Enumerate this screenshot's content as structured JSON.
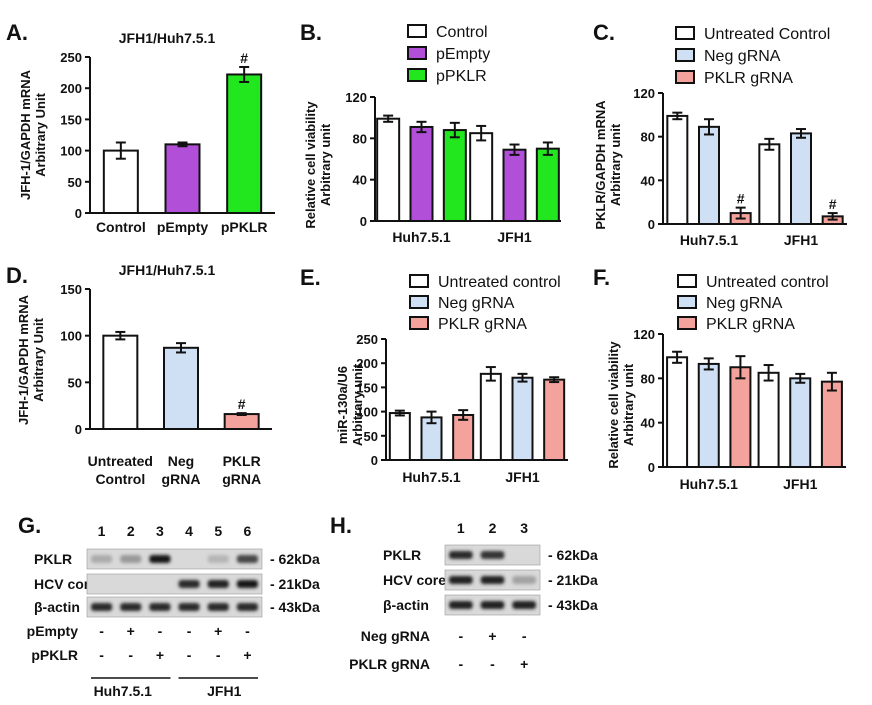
{
  "colors": {
    "white": "#ffffff",
    "purple": "#b14fd8",
    "green": "#22e61e",
    "lightblue": "#cfe0f5",
    "salmon": "#f4a29c",
    "outline": "#111111"
  },
  "chart_data": [
    {
      "panel": "A.",
      "type": "bar",
      "title": "JFH1/Huh7.5.1",
      "ylabel": [
        "JFH-1/GAPDH mRNA",
        "Arbitrary Unit"
      ],
      "ylim": [
        0,
        250
      ],
      "yticks": [
        "0",
        "50",
        "100",
        "150",
        "200",
        "250"
      ],
      "categories": [
        "Control",
        "pEmpty",
        "pPKLR"
      ],
      "values": [
        100,
        110,
        222
      ],
      "errors": [
        13,
        3,
        12
      ],
      "bar_colors": [
        "white",
        "purple",
        "green"
      ],
      "marks": [
        "",
        "",
        "#"
      ]
    },
    {
      "panel": "B.",
      "type": "bar",
      "ylabel": [
        "Relative cell viability",
        "Arbitrary unit"
      ],
      "ylim": [
        0,
        120
      ],
      "yticks": [
        "0",
        "40",
        "80",
        "120"
      ],
      "categories": [
        "Huh7.5.1",
        "JFH1"
      ],
      "series": [
        {
          "name": "Control",
          "color": "white",
          "values": [
            99,
            85
          ],
          "errors": [
            3,
            7
          ],
          "marks": [
            "",
            ""
          ]
        },
        {
          "name": "pEmpty",
          "color": "purple",
          "values": [
            91,
            69
          ],
          "errors": [
            5,
            5
          ],
          "marks": [
            "",
            ""
          ]
        },
        {
          "name": "pPKLR",
          "color": "green",
          "values": [
            88,
            70
          ],
          "errors": [
            7,
            6
          ],
          "marks": [
            "",
            ""
          ]
        }
      ]
    },
    {
      "panel": "C.",
      "type": "bar",
      "ylabel": [
        "PKLR/GAPDH mRNA",
        "Arbitrary unit"
      ],
      "ylim": [
        0,
        120
      ],
      "yticks": [
        "0",
        "40",
        "80",
        "120"
      ],
      "categories": [
        "Huh7.5.1",
        "JFH1"
      ],
      "series": [
        {
          "name": "Untreated Control",
          "color": "white",
          "values": [
            99,
            73
          ],
          "errors": [
            3,
            5
          ],
          "marks": [
            "",
            ""
          ]
        },
        {
          "name": "Neg gRNA",
          "color": "lightblue",
          "values": [
            89,
            83
          ],
          "errors": [
            7,
            4
          ],
          "marks": [
            "",
            ""
          ]
        },
        {
          "name": "PKLR gRNA",
          "color": "salmon",
          "values": [
            10,
            7
          ],
          "errors": [
            5,
            3
          ],
          "marks": [
            "#",
            "#"
          ]
        }
      ]
    },
    {
      "panel": "D.",
      "type": "bar",
      "title": "JFH1/Huh7.5.1",
      "ylabel": [
        "JFH-1/GAPDH mRNA",
        "Arbitrary Unit"
      ],
      "ylim": [
        0,
        150
      ],
      "yticks": [
        "0",
        "50",
        "100",
        "150"
      ],
      "categories": [
        [
          "Untreated",
          "Control"
        ],
        [
          "Neg",
          "gRNA"
        ],
        [
          "PKLR",
          "gRNA"
        ]
      ],
      "values": [
        100,
        87,
        16
      ],
      "errors": [
        4,
        5,
        1
      ],
      "bar_colors": [
        "white",
        "lightblue",
        "salmon"
      ],
      "marks": [
        "",
        "",
        "#"
      ]
    },
    {
      "panel": "E.",
      "type": "bar",
      "ylabel": [
        "miR-130a/U6",
        "Arbitrary unit"
      ],
      "ylim": [
        0,
        250
      ],
      "yticks": [
        "0",
        "50",
        "100",
        "150",
        "200",
        "250"
      ],
      "categories": [
        "Huh7.5.1",
        "JFH1"
      ],
      "series": [
        {
          "name": "Untreated control",
          "color": "white",
          "values": [
            97,
            178
          ],
          "errors": [
            5,
            14
          ],
          "marks": [
            "",
            ""
          ]
        },
        {
          "name": "Neg gRNA",
          "color": "lightblue",
          "values": [
            88,
            170
          ],
          "errors": [
            12,
            8
          ],
          "marks": [
            "",
            ""
          ]
        },
        {
          "name": "PKLR gRNA",
          "color": "salmon",
          "values": [
            93,
            166
          ],
          "errors": [
            10,
            5
          ],
          "marks": [
            "",
            ""
          ]
        }
      ]
    },
    {
      "panel": "F.",
      "type": "bar",
      "ylabel": [
        "Relative cell viability",
        "Arbitrary unit"
      ],
      "ylim": [
        0,
        120
      ],
      "yticks": [
        "0",
        "40",
        "80",
        "120"
      ],
      "categories": [
        "Huh7.5.1",
        "JFH1"
      ],
      "series": [
        {
          "name": "Untreated control",
          "color": "white",
          "values": [
            99,
            85
          ],
          "errors": [
            5,
            7
          ],
          "marks": [
            "",
            ""
          ]
        },
        {
          "name": "Neg gRNA",
          "color": "lightblue",
          "values": [
            93,
            80
          ],
          "errors": [
            5,
            4
          ],
          "marks": [
            "",
            ""
          ]
        },
        {
          "name": "PKLR gRNA",
          "color": "salmon",
          "values": [
            90,
            77
          ],
          "errors": [
            10,
            8
          ],
          "marks": [
            "",
            ""
          ]
        }
      ]
    }
  ],
  "blots": {
    "G": {
      "panel": "G.",
      "lanes": [
        "1",
        "2",
        "3",
        "4",
        "5",
        "6"
      ],
      "rows": [
        {
          "label": "PKLR",
          "size": "- 62kDa",
          "intensity": [
            0.15,
            0.25,
            0.95,
            0.0,
            0.1,
            0.7
          ]
        },
        {
          "label": "HCV core",
          "size": "- 21kDa",
          "intensity": [
            0.0,
            0.0,
            0.0,
            0.85,
            0.9,
            0.95
          ]
        },
        {
          "label": "β-actin",
          "size": "- 43kDa",
          "intensity": [
            0.85,
            0.85,
            0.85,
            0.85,
            0.85,
            0.85
          ]
        }
      ],
      "treatments": [
        {
          "label": "pEmpty",
          "signs": [
            "-",
            "+",
            "-",
            "-",
            "+",
            "-"
          ]
        },
        {
          "label": "pPKLR",
          "signs": [
            "-",
            "-",
            "+",
            "-",
            "-",
            "+"
          ]
        }
      ],
      "groups": [
        "Huh7.5.1",
        "JFH1"
      ]
    },
    "H": {
      "panel": "H.",
      "lanes": [
        "1",
        "2",
        "3"
      ],
      "rows": [
        {
          "label": "PKLR",
          "size": "- 62kDa",
          "intensity": [
            0.85,
            0.8,
            0.0
          ]
        },
        {
          "label": "HCV core",
          "size": "- 21kDa",
          "intensity": [
            0.9,
            0.9,
            0.2
          ]
        },
        {
          "label": "β-actin",
          "size": "- 43kDa",
          "intensity": [
            0.9,
            0.9,
            0.9
          ]
        }
      ],
      "treatments": [
        {
          "label": "Neg gRNA",
          "signs": [
            "-",
            "+",
            "-"
          ]
        },
        {
          "label": "PKLR gRNA",
          "signs": [
            "-",
            "-",
            "+"
          ]
        }
      ]
    }
  }
}
